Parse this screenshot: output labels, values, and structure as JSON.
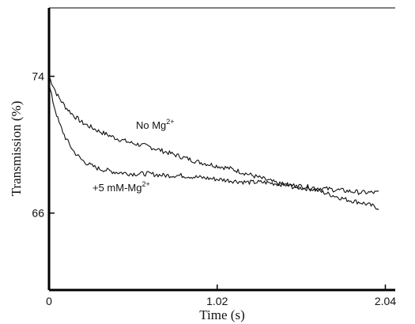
{
  "chart_data": {
    "type": "line",
    "xlabel": "Time (s)",
    "ylabel": "Transmission (%)",
    "xlim": [
      0,
      2.1
    ],
    "ylim": [
      61.5,
      78
    ],
    "x_ticks": [
      {
        "value": 0,
        "label": "0"
      },
      {
        "value": 1.02,
        "label": "1.02"
      },
      {
        "value": 2.04,
        "label": "2.04"
      }
    ],
    "y_ticks": [
      {
        "value": 74,
        "label": "74"
      },
      {
        "value": 66,
        "label": "66"
      }
    ],
    "grid": false,
    "series": [
      {
        "annotation": {
          "main": "No Mg",
          "sup": "2+"
        },
        "x": [
          0,
          0.05,
          0.1,
          0.15,
          0.2,
          0.3,
          0.4,
          0.5,
          0.6,
          0.7,
          0.8,
          0.9,
          1.0,
          1.1,
          1.2,
          1.3,
          1.4,
          1.5,
          1.6,
          1.7,
          1.8,
          1.9,
          2.0
        ],
        "y": [
          74.0,
          72.9,
          72.2,
          71.7,
          71.3,
          70.8,
          70.4,
          70.1,
          69.9,
          69.6,
          69.3,
          69.0,
          68.8,
          68.6,
          68.3,
          68.0,
          67.7,
          67.5,
          67.4,
          67.1,
          66.8,
          66.6,
          66.3
        ]
      },
      {
        "annotation": {
          "main": "+5 mM-Mg",
          "sup": "2+"
        },
        "x": [
          0,
          0.03,
          0.06,
          0.1,
          0.15,
          0.2,
          0.25,
          0.3,
          0.4,
          0.5,
          0.6,
          0.7,
          0.8,
          0.9,
          1.0,
          1.1,
          1.2,
          1.3,
          1.4,
          1.5,
          1.6,
          1.7,
          1.8,
          1.9,
          2.0
        ],
        "y": [
          73.5,
          72.3,
          71.3,
          70.4,
          69.6,
          69.1,
          68.8,
          68.6,
          68.4,
          68.3,
          68.3,
          68.2,
          68.2,
          68.1,
          68.0,
          67.9,
          67.8,
          67.8,
          67.7,
          67.6,
          67.5,
          67.4,
          67.3,
          67.2,
          67.2
        ]
      }
    ]
  }
}
